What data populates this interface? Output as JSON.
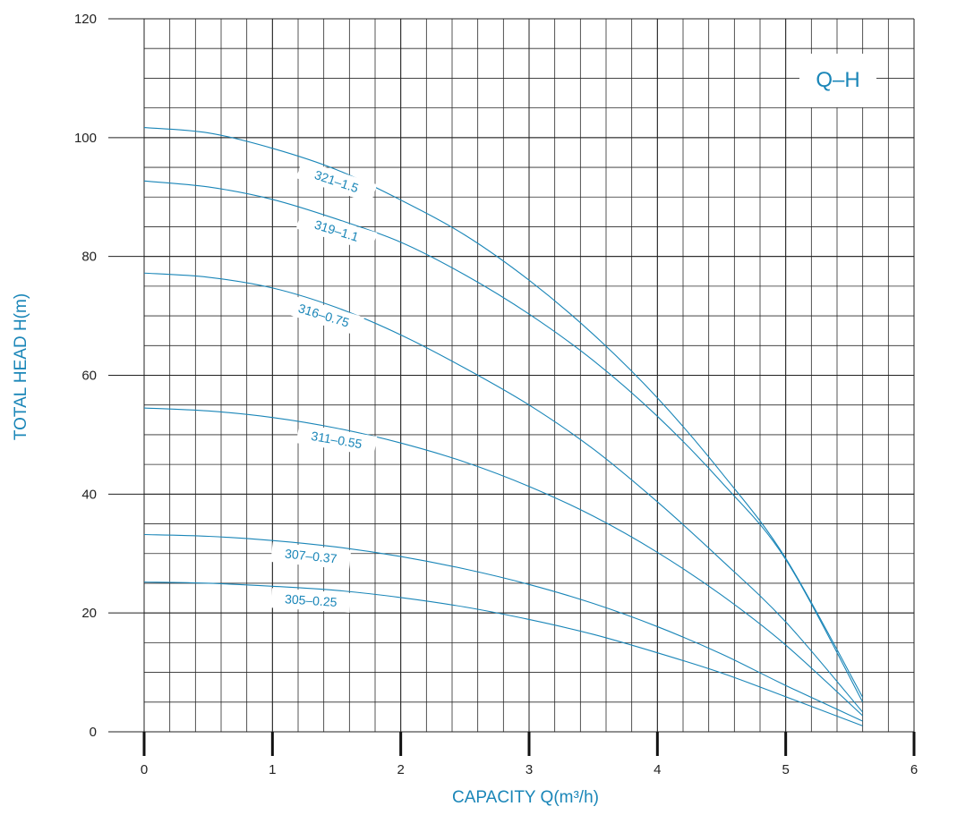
{
  "chart_data": {
    "type": "line",
    "badge": "Q–H",
    "xlabel": "CAPACITY Q(m³/h)",
    "ylabel": "TOTAL HEAD H(m)",
    "xlim": [
      0,
      6
    ],
    "ylim": [
      0,
      120
    ],
    "x_ticks": [
      0,
      1,
      2,
      3,
      4,
      5,
      6
    ],
    "y_ticks": [
      0,
      20,
      40,
      60,
      80,
      100,
      120
    ],
    "grid": true,
    "accent_color": "#1a86b8",
    "series": [
      {
        "name": "321–1.5",
        "x": [
          0,
          0.5,
          1,
          1.5,
          2,
          2.5,
          3,
          3.5,
          4,
          4.5,
          5,
          5.6
        ],
        "y": [
          101.7,
          100.8,
          98.2,
          94.6,
          89.5,
          83.6,
          76.0,
          66.9,
          56.2,
          43.6,
          29.2,
          5.8
        ]
      },
      {
        "name": "319–1.1",
        "x": [
          0,
          0.5,
          1,
          1.5,
          2,
          2.5,
          3,
          3.5,
          4,
          4.5,
          5,
          5.6
        ],
        "y": [
          92.7,
          91.7,
          89.6,
          86.3,
          82.4,
          76.9,
          70.3,
          62.5,
          53.1,
          42.0,
          29.0,
          5.0
        ]
      },
      {
        "name": "316–0.75",
        "x": [
          0,
          0.5,
          1,
          1.5,
          2,
          2.5,
          3,
          3.5,
          4,
          4.5,
          5,
          5.6
        ],
        "y": [
          77.2,
          76.5,
          74.7,
          71.4,
          66.8,
          61.2,
          55.0,
          47.6,
          38.7,
          28.9,
          18.5,
          3.3
        ]
      },
      {
        "name": "311–0.55",
        "x": [
          0,
          0.5,
          1,
          1.5,
          2,
          2.5,
          3,
          3.5,
          4,
          4.5,
          5,
          5.6
        ],
        "y": [
          54.5,
          54.0,
          52.9,
          51.1,
          48.6,
          45.4,
          41.3,
          36.3,
          30.2,
          23.0,
          14.6,
          2.7
        ]
      },
      {
        "name": "307–0.37",
        "x": [
          0,
          0.5,
          1,
          1.5,
          2,
          2.5,
          3,
          3.5,
          4,
          4.5,
          5,
          5.6
        ],
        "y": [
          33.2,
          32.9,
          32.2,
          31.1,
          29.5,
          27.4,
          24.8,
          21.6,
          17.7,
          13.1,
          7.8,
          1.8
        ]
      },
      {
        "name": "305–0.25",
        "x": [
          0,
          0.5,
          1,
          1.5,
          2,
          2.5,
          3,
          3.5,
          4,
          4.5,
          5,
          5.6
        ],
        "y": [
          25.2,
          25.0,
          24.5,
          23.8,
          22.6,
          21.0,
          18.9,
          16.4,
          13.3,
          9.9,
          5.9,
          1.0
        ]
      }
    ]
  }
}
